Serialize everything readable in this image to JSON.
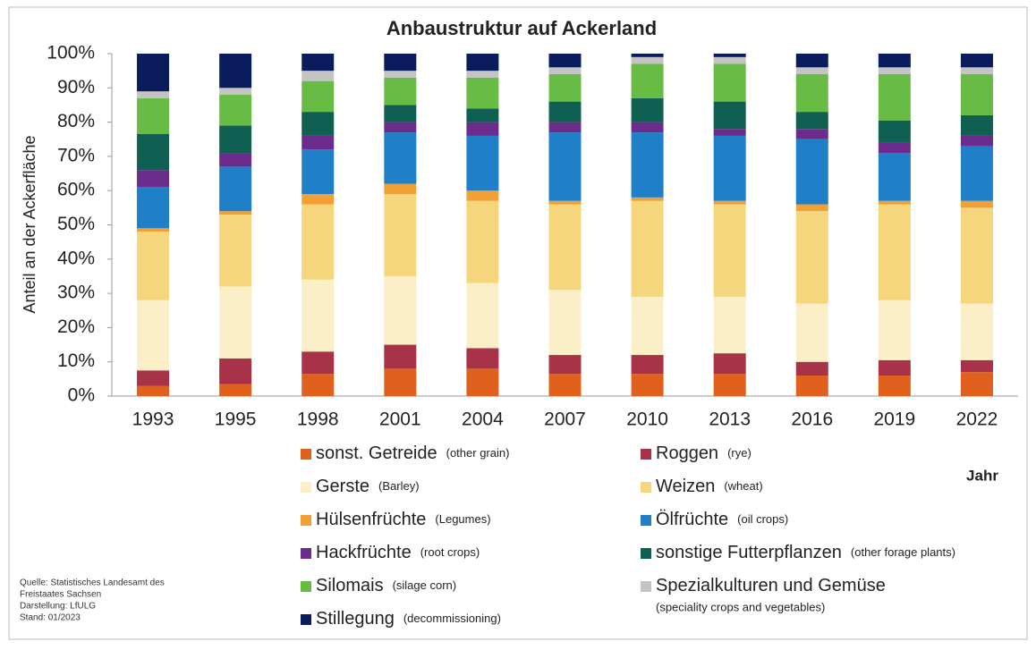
{
  "chart_data": {
    "type": "stacked_bar",
    "title": "Anbaustruktur auf Ackerland",
    "y_label": "Anteil an der Ackerfläche",
    "x_label": "Jahr",
    "source": [
      "Quelle: Statistisches Landesamt des",
      "Freistaates Sachsen",
      "Darstellung: LfULG",
      "Stand: 01/2023"
    ],
    "categories": [
      "1993",
      "1995",
      "1998",
      "2001",
      "2004",
      "2007",
      "2010",
      "2013",
      "2016",
      "2019",
      "2022"
    ],
    "ylim": [
      0,
      100
    ],
    "yticks": [
      {
        "value": 0,
        "label": "0%"
      },
      {
        "value": 10,
        "label": "10%"
      },
      {
        "value": 20,
        "label": "20%"
      },
      {
        "value": 30,
        "label": "30%"
      },
      {
        "value": 40,
        "label": "40%"
      },
      {
        "value": 50,
        "label": "50%"
      },
      {
        "value": 60,
        "label": "60%"
      },
      {
        "value": 70,
        "label": "70%"
      },
      {
        "value": 80,
        "label": "80%"
      },
      {
        "value": 90,
        "label": "90%"
      },
      {
        "value": 100,
        "label": "100%"
      }
    ],
    "series": [
      {
        "name": "sonst. Getreide",
        "name_en": "(other grain)",
        "color": "#e0601e",
        "values": [
          3,
          3.5,
          6.5,
          8,
          8,
          6.5,
          6.5,
          6.5,
          6,
          6,
          7
        ]
      },
      {
        "name": "Roggen",
        "name_en": "(rye)",
        "color": "#a83248",
        "values": [
          4.5,
          7.5,
          6.5,
          7,
          6,
          5.5,
          5.5,
          6,
          4,
          4.5,
          3.5
        ]
      },
      {
        "name": "Gerste",
        "name_en": "(Barley)",
        "color": "#fbefc8",
        "values": [
          20.5,
          21,
          21,
          20,
          19,
          19,
          17,
          16.5,
          17,
          17.5,
          16.5
        ]
      },
      {
        "name": "Weizen",
        "name_en": "(wheat)",
        "color": "#f5d67c",
        "values": [
          20,
          21,
          22,
          24,
          24,
          25,
          28,
          27,
          27,
          28,
          28
        ]
      },
      {
        "name": "Hülsenfrüchte",
        "name_en": "(Legumes)",
        "color": "#f0a034",
        "values": [
          1,
          1,
          3,
          3,
          3,
          1,
          1,
          1,
          2,
          1,
          2
        ]
      },
      {
        "name": "Ölfrüchte",
        "name_en": "(oil crops)",
        "color": "#1f80c8",
        "values": [
          12,
          13,
          13,
          15,
          16,
          20,
          19,
          19,
          19,
          14,
          16
        ]
      },
      {
        "name": "Hackfrüchte",
        "name_en": "(root crops)",
        "color": "#6b2c8c",
        "values": [
          5,
          4,
          4,
          3,
          4,
          3,
          3,
          2,
          3,
          3,
          3
        ]
      },
      {
        "name": "sonstige Futterpflanzen",
        "name_en": "(other forage plants)",
        "color": "#0f5f52",
        "values": [
          10.5,
          8,
          7,
          5,
          4,
          6,
          7,
          8,
          5,
          6.5,
          6
        ]
      },
      {
        "name": "Silomais",
        "name_en": "(silage corn)",
        "color": "#68bc46",
        "values": [
          10.5,
          9,
          9,
          8,
          9,
          8,
          10,
          11,
          11,
          13.5,
          12
        ]
      },
      {
        "name": "Spezialkulturen und Gemüse",
        "name_en": "(speciality crops and vegetables)",
        "color": "#c4c4c4",
        "values": [
          2,
          2,
          3,
          2,
          2,
          2,
          2,
          2,
          2,
          2,
          2
        ]
      },
      {
        "name": "Stillegung",
        "name_en": "(decommissioning)",
        "color": "#0b1c5c",
        "values": [
          11,
          10,
          5,
          5,
          5,
          4,
          1,
          1,
          4,
          4,
          4
        ]
      }
    ]
  }
}
